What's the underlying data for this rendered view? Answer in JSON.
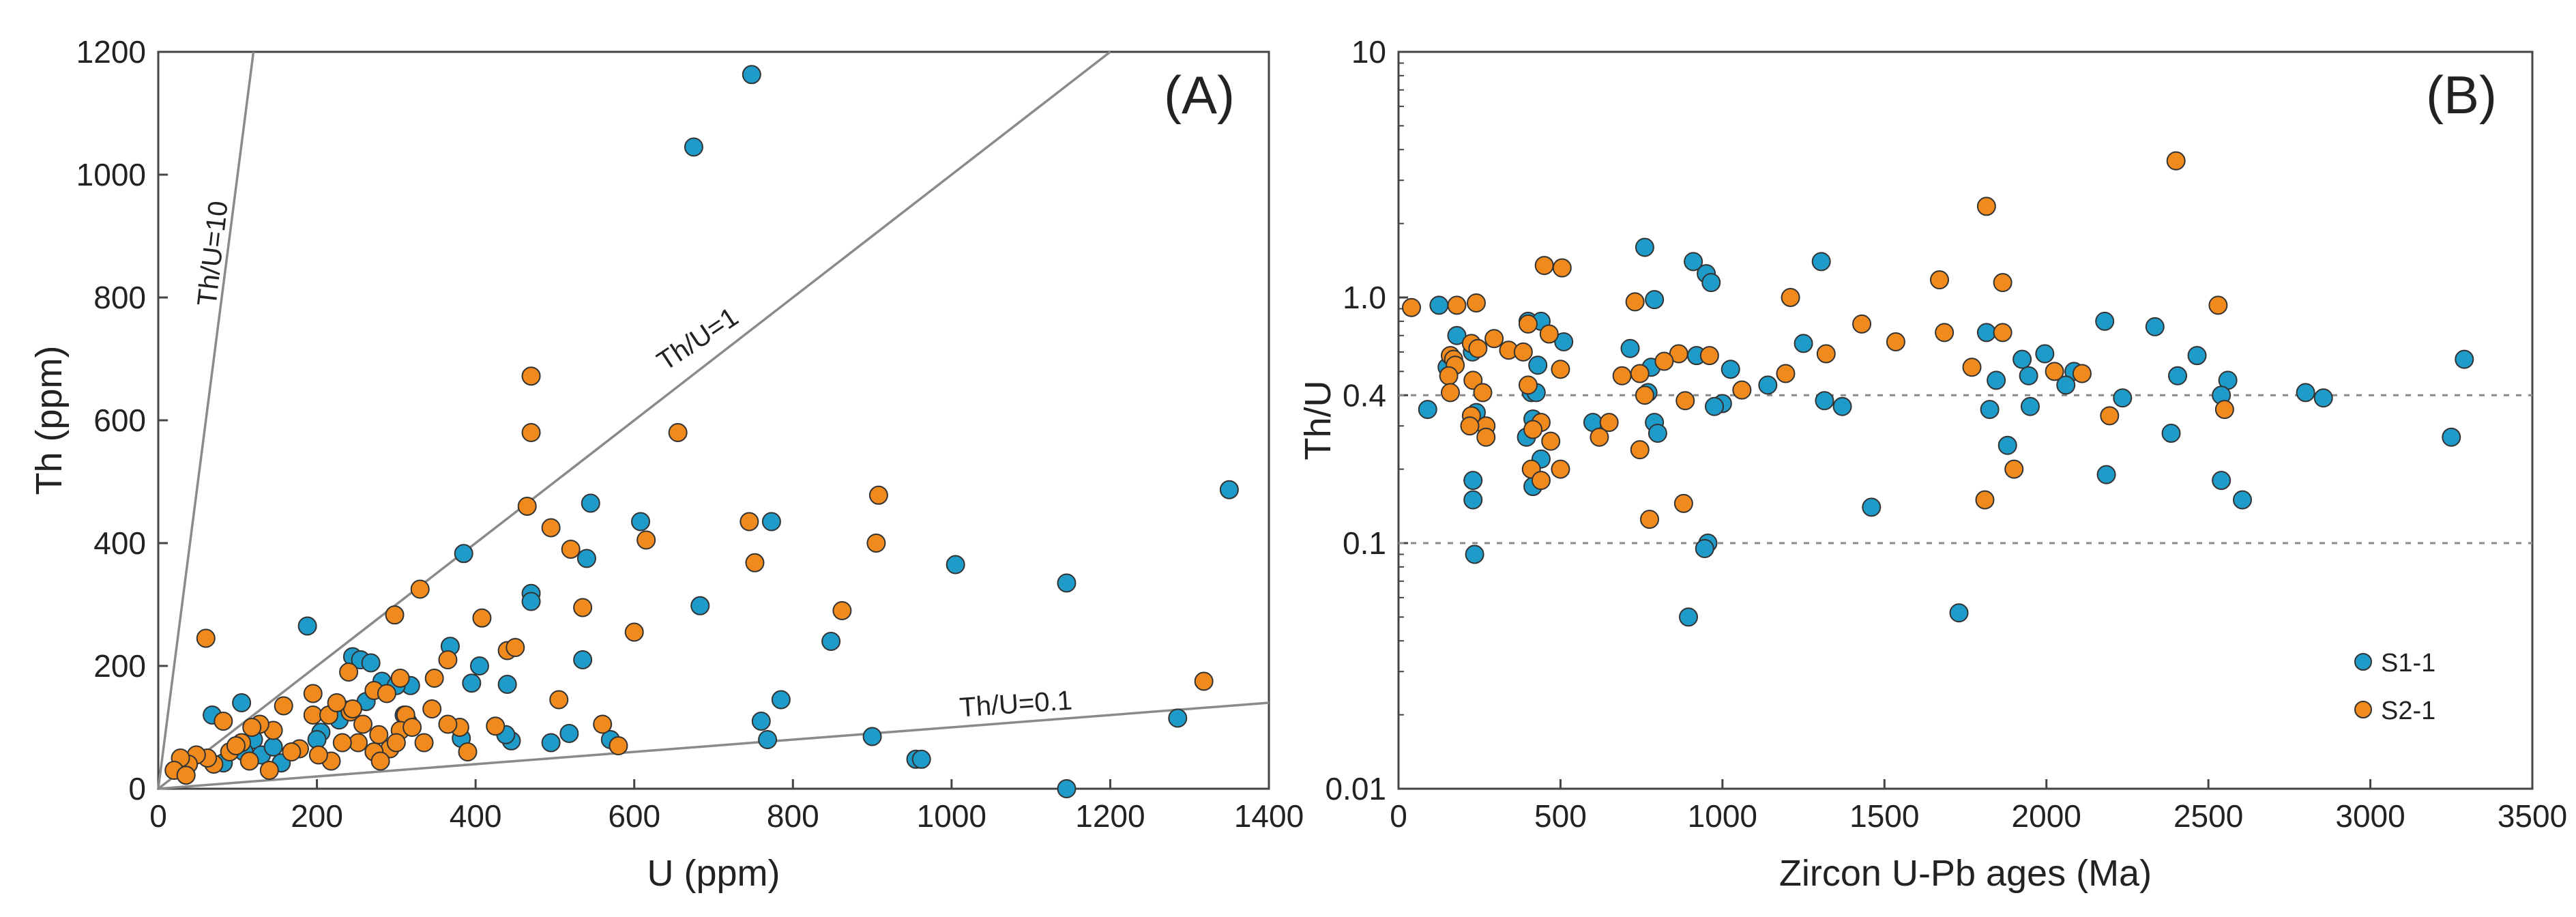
{
  "colors": {
    "s1": "#1e9bc9",
    "s2": "#f08a1c",
    "frame": "#444444",
    "ref": "#8a8a8a",
    "dash": "#8a8a8a"
  },
  "chart_data": [
    {
      "type": "scatter",
      "panel_label": "(A)",
      "xlabel": "U (ppm)",
      "ylabel": "Th (ppm)",
      "xlim": [
        0,
        1400
      ],
      "ylim": [
        0,
        1200
      ],
      "xticks": [
        0,
        200,
        400,
        600,
        800,
        1000,
        1200,
        1400
      ],
      "yticks": [
        0,
        200,
        400,
        600,
        800,
        1000,
        1200
      ],
      "reference_lines": [
        {
          "label": "Th/U=10",
          "ratio": 10
        },
        {
          "label": "Th/U=1",
          "ratio": 1
        },
        {
          "label": "Th/U=0.1",
          "ratio": 0.1
        }
      ],
      "series": [
        {
          "name": "S1-1",
          "points": [
            [
              748,
              1163
            ],
            [
              675,
              1045
            ],
            [
              1350,
              487
            ],
            [
              545,
              465
            ],
            [
              608,
              435
            ],
            [
              773,
              435
            ],
            [
              540,
              375
            ],
            [
              385,
              383
            ],
            [
              1005,
              365
            ],
            [
              1145,
              335
            ],
            [
              470,
              318
            ],
            [
              470,
              305
            ],
            [
              683,
              298
            ],
            [
              188,
              265
            ],
            [
              848,
              240
            ],
            [
              368,
              232
            ],
            [
              535,
              210
            ],
            [
              405,
              200
            ],
            [
              395,
              172
            ],
            [
              440,
              170
            ],
            [
              318,
              168
            ],
            [
              245,
              215
            ],
            [
              255,
              210
            ],
            [
              268,
              205
            ],
            [
              282,
              175
            ],
            [
              300,
              168
            ],
            [
              262,
              142
            ],
            [
              310,
              120
            ],
            [
              315,
              108
            ],
            [
              238,
              128
            ],
            [
              228,
              112
            ],
            [
              205,
              92
            ],
            [
              200,
              80
            ],
            [
              68,
              120
            ],
            [
              105,
              140
            ],
            [
              120,
              80
            ],
            [
              130,
              55
            ],
            [
              145,
              68
            ],
            [
              155,
              42
            ],
            [
              108,
              60
            ],
            [
              82,
              42
            ],
            [
              1145,
              0
            ],
            [
              760,
              110
            ],
            [
              768,
              80
            ],
            [
              785,
              145
            ],
            [
              900,
              85
            ],
            [
              955,
              48
            ],
            [
              962,
              48
            ],
            [
              1285,
              115
            ],
            [
              570,
              80
            ],
            [
              518,
              90
            ],
            [
              445,
              78
            ],
            [
              438,
              88
            ],
            [
              495,
              75
            ],
            [
              382,
              82
            ]
          ]
        },
        {
          "name": "S2-1",
          "points": [
            [
              470,
              672
            ],
            [
              470,
              580
            ],
            [
              655,
              580
            ],
            [
              465,
              460
            ],
            [
              495,
              425
            ],
            [
              520,
              390
            ],
            [
              615,
              405
            ],
            [
              908,
              478
            ],
            [
              745,
              435
            ],
            [
              752,
              368
            ],
            [
              905,
              400
            ],
            [
              535,
              295
            ],
            [
              600,
              255
            ],
            [
              862,
              290
            ],
            [
              408,
              278
            ],
            [
              298,
              283
            ],
            [
              330,
              325
            ],
            [
              365,
              210
            ],
            [
              348,
              180
            ],
            [
              380,
              100
            ],
            [
              390,
              60
            ],
            [
              440,
              225
            ],
            [
              450,
              230
            ],
            [
              425,
              102
            ],
            [
              505,
              145
            ],
            [
              560,
              105
            ],
            [
              580,
              70
            ],
            [
              1318,
              175
            ],
            [
              60,
              245
            ],
            [
              195,
              155
            ],
            [
              240,
              190
            ],
            [
              242,
              125
            ],
            [
              245,
              130
            ],
            [
              272,
              160
            ],
            [
              288,
              155
            ],
            [
              305,
              180
            ],
            [
              312,
              120
            ],
            [
              305,
              95
            ],
            [
              292,
              65
            ],
            [
              272,
              60
            ],
            [
              252,
              75
            ],
            [
              232,
              75
            ],
            [
              218,
              45
            ],
            [
              202,
              55
            ],
            [
              178,
              65
            ],
            [
              195,
              120
            ],
            [
              158,
              135
            ],
            [
              145,
              95
            ],
            [
              128,
              105
            ],
            [
              118,
              100
            ],
            [
              105,
              75
            ],
            [
              90,
              60
            ],
            [
              82,
              110
            ],
            [
              70,
              40
            ],
            [
              62,
              50
            ],
            [
              48,
              55
            ],
            [
              38,
              40
            ],
            [
              28,
              50
            ],
            [
              20,
              30
            ],
            [
              35,
              22
            ],
            [
              98,
              70
            ],
            [
              115,
              45
            ],
            [
              140,
              30
            ],
            [
              168,
              60
            ],
            [
              215,
              120
            ],
            [
              225,
              140
            ],
            [
              258,
              105
            ],
            [
              278,
              88
            ],
            [
              335,
              75
            ],
            [
              345,
              130
            ],
            [
              365,
              105
            ],
            [
              320,
              100
            ],
            [
              300,
              75
            ],
            [
              280,
              45
            ]
          ]
        }
      ]
    },
    {
      "type": "scatter",
      "panel_label": "(B)",
      "xlabel": "Zircon U-Pb ages (Ma)",
      "ylabel": "Th/U",
      "yscale": "log",
      "xlim": [
        0,
        3500
      ],
      "ylim": [
        0.01,
        10
      ],
      "xticks": [
        0,
        500,
        1000,
        1500,
        2000,
        2500,
        3000,
        3500
      ],
      "yticks": [
        {
          "value": 10,
          "label": "10"
        },
        {
          "value": 1,
          "label": "1.0"
        },
        {
          "value": 0.4,
          "label": "0.4"
        },
        {
          "value": 0.1,
          "label": "0.1"
        },
        {
          "value": 0.01,
          "label": "0.01"
        }
      ],
      "dashed_lines": [
        0.4,
        0.1
      ],
      "legend": [
        "S1-1",
        "S2-1"
      ],
      "series": [
        {
          "name": "S1-1",
          "points": [
            [
              760,
              1.6
            ],
            [
              910,
              1.4
            ],
            [
              1305,
              1.4
            ],
            [
              950,
              1.25
            ],
            [
              965,
              1.15
            ],
            [
              790,
              0.98
            ],
            [
              125,
              0.93
            ],
            [
              400,
              0.8
            ],
            [
              440,
              0.8
            ],
            [
              2180,
              0.8
            ],
            [
              2335,
              0.76
            ],
            [
              1815,
              0.72
            ],
            [
              180,
              0.7
            ],
            [
              510,
              0.66
            ],
            [
              1250,
              0.65
            ],
            [
              715,
              0.62
            ],
            [
              228,
              0.6
            ],
            [
              920,
              0.58
            ],
            [
              1925,
              0.56
            ],
            [
              1995,
              0.59
            ],
            [
              2465,
              0.58
            ],
            [
              3290,
              0.56
            ],
            [
              430,
              0.53
            ],
            [
              780,
              0.52
            ],
            [
              1025,
              0.51
            ],
            [
              2085,
              0.5
            ],
            [
              2405,
              0.48
            ],
            [
              1945,
              0.48
            ],
            [
              1845,
              0.46
            ],
            [
              2060,
              0.44
            ],
            [
              1140,
              0.44
            ],
            [
              2560,
              0.46
            ],
            [
              2800,
              0.41
            ],
            [
              2855,
              0.39
            ],
            [
              150,
              0.52
            ],
            [
              410,
              0.41
            ],
            [
              425,
              0.41
            ],
            [
              770,
              0.41
            ],
            [
              1000,
              0.37
            ],
            [
              1315,
              0.38
            ],
            [
              1370,
              0.36
            ],
            [
              975,
              0.36
            ],
            [
              1950,
              0.36
            ],
            [
              1825,
              0.35
            ],
            [
              2235,
              0.39
            ],
            [
              90,
              0.35
            ],
            [
              240,
              0.34
            ],
            [
              415,
              0.32
            ],
            [
              600,
              0.31
            ],
            [
              790,
              0.31
            ],
            [
              800,
              0.28
            ],
            [
              395,
              0.27
            ],
            [
              2385,
              0.28
            ],
            [
              2540,
              0.4
            ],
            [
              3250,
              0.27
            ],
            [
              1880,
              0.25
            ],
            [
              440,
              0.22
            ],
            [
              230,
              0.18
            ],
            [
              415,
              0.17
            ],
            [
              2185,
              0.19
            ],
            [
              2540,
              0.18
            ],
            [
              2605,
              0.15
            ],
            [
              1460,
              0.14
            ],
            [
              230,
              0.15
            ],
            [
              955,
              0.1
            ],
            [
              945,
              0.095
            ],
            [
              235,
              0.09
            ],
            [
              895,
              0.05
            ],
            [
              1730,
              0.052
            ]
          ]
        },
        {
          "name": "S2-1",
          "points": [
            [
              2400,
              3.6
            ],
            [
              1815,
              2.35
            ],
            [
              450,
              1.35
            ],
            [
              505,
              1.32
            ],
            [
              1670,
              1.18
            ],
            [
              1865,
              1.15
            ],
            [
              730,
              0.96
            ],
            [
              1210,
              1.0
            ],
            [
              2530,
              0.93
            ],
            [
              180,
              0.93
            ],
            [
              240,
              0.95
            ],
            [
              40,
              0.91
            ],
            [
              400,
              0.78
            ],
            [
              1430,
              0.78
            ],
            [
              1865,
              0.72
            ],
            [
              1685,
              0.72
            ],
            [
              465,
              0.71
            ],
            [
              295,
              0.68
            ],
            [
              1535,
              0.66
            ],
            [
              225,
              0.65
            ],
            [
              245,
              0.62
            ],
            [
              340,
              0.61
            ],
            [
              385,
              0.6
            ],
            [
              865,
              0.59
            ],
            [
              960,
              0.58
            ],
            [
              1320,
              0.59
            ],
            [
              160,
              0.58
            ],
            [
              170,
              0.56
            ],
            [
              820,
              0.55
            ],
            [
              175,
              0.53
            ],
            [
              500,
              0.51
            ],
            [
              1770,
              0.52
            ],
            [
              2025,
              0.5
            ],
            [
              2110,
              0.49
            ],
            [
              1195,
              0.49
            ],
            [
              745,
              0.49
            ],
            [
              690,
              0.48
            ],
            [
              155,
              0.48
            ],
            [
              230,
              0.46
            ],
            [
              400,
              0.44
            ],
            [
              1060,
              0.42
            ],
            [
              160,
              0.41
            ],
            [
              260,
              0.41
            ],
            [
              760,
              0.4
            ],
            [
              885,
              0.38
            ],
            [
              2550,
              0.35
            ],
            [
              2195,
              0.33
            ],
            [
              225,
              0.33
            ],
            [
              440,
              0.31
            ],
            [
              270,
              0.3
            ],
            [
              650,
              0.31
            ],
            [
              220,
              0.3
            ],
            [
              415,
              0.29
            ],
            [
              470,
              0.26
            ],
            [
              270,
              0.27
            ],
            [
              620,
              0.27
            ],
            [
              745,
              0.24
            ],
            [
              500,
              0.2
            ],
            [
              410,
              0.2
            ],
            [
              440,
              0.18
            ],
            [
              1900,
              0.2
            ],
            [
              1810,
              0.15
            ],
            [
              880,
              0.145
            ],
            [
              775,
              0.125
            ]
          ]
        }
      ]
    }
  ]
}
